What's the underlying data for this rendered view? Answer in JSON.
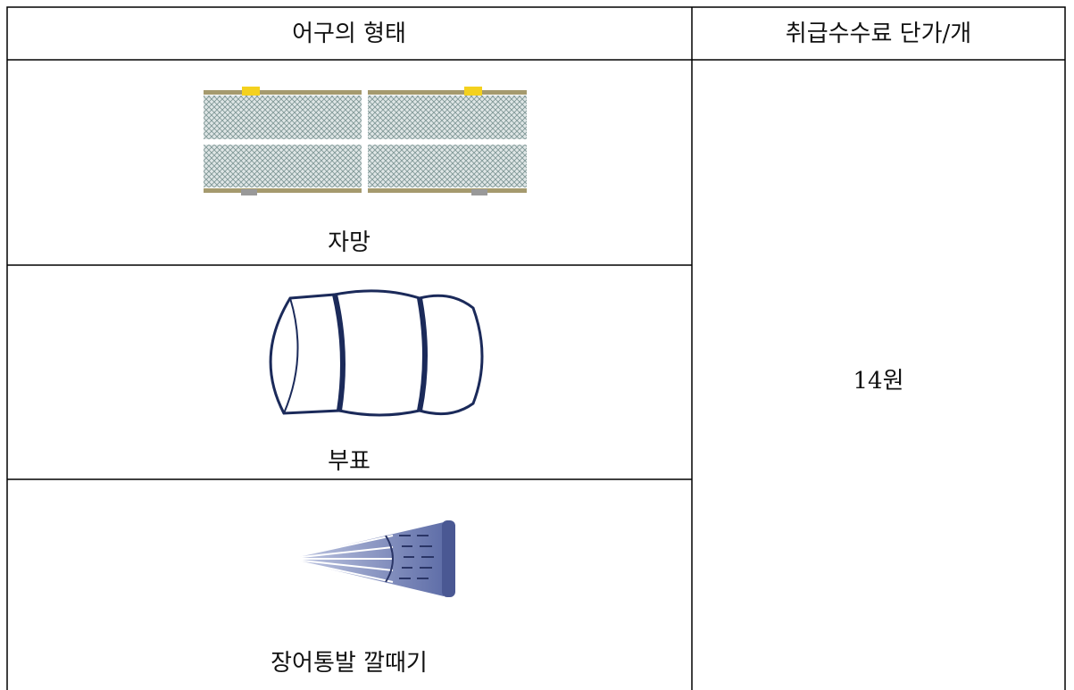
{
  "table": {
    "header": [
      "어구의 형태",
      "취급수수료 단가/개"
    ],
    "rows": [
      {
        "label": "자망"
      },
      {
        "label": "부표"
      },
      {
        "label": "장어통발 깔때기"
      }
    ],
    "fee": "14원"
  }
}
